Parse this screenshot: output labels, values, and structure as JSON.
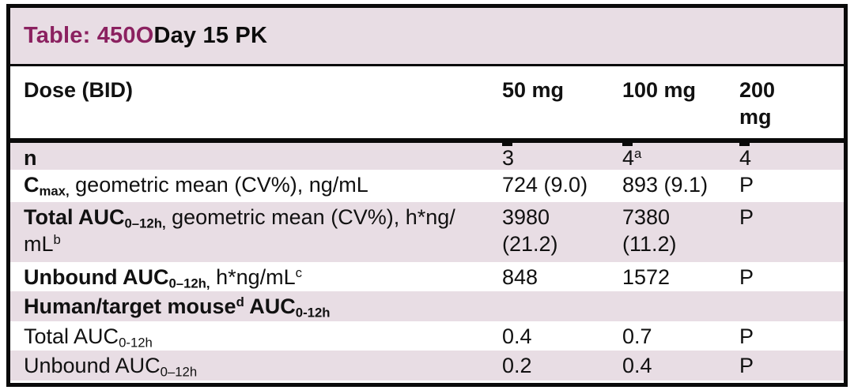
{
  "colors": {
    "accent": "#8b2160",
    "row_shade": "#e8dde4",
    "border": "#0a0a0a"
  },
  "title": {
    "prefix": "Table: 450O",
    "suffix": " Day 15 PK"
  },
  "header": {
    "label": "Dose (BID)",
    "columns": [
      "50 mg",
      "100 mg",
      "200 mg"
    ]
  },
  "rows": [
    {
      "shaded": true,
      "label": [
        {
          "t": "n",
          "b": true
        }
      ],
      "values": [
        [
          {
            "t": "3"
          }
        ],
        [
          {
            "t": "4"
          },
          {
            "t": "a",
            "sup": true
          }
        ],
        [
          {
            "t": "4"
          }
        ]
      ]
    },
    {
      "shaded": false,
      "label": [
        {
          "t": "C",
          "b": true
        },
        {
          "t": "max,",
          "b": true,
          "sub": true
        },
        {
          "t": " geometric mean (CV%), ng/mL"
        }
      ],
      "values": [
        [
          {
            "t": "724 (9.0)"
          }
        ],
        [
          {
            "t": "893 (9.1)"
          }
        ],
        [
          {
            "t": "P"
          }
        ]
      ]
    },
    {
      "shaded": true,
      "label": [
        {
          "t": "Total AUC",
          "b": true
        },
        {
          "t": "0–12h,",
          "b": true,
          "sub": true
        },
        {
          "t": " geometric mean (CV%), h*ng/"
        },
        {
          "br": true
        },
        {
          "t": "mL"
        },
        {
          "t": "b",
          "sup": true
        }
      ],
      "values": [
        [
          {
            "t": "3980"
          },
          {
            "br": true
          },
          {
            "t": "(21.2)"
          }
        ],
        [
          {
            "t": "7380"
          },
          {
            "br": true
          },
          {
            "t": "(11.2)"
          }
        ],
        [
          {
            "t": "P"
          }
        ]
      ]
    },
    {
      "shaded": false,
      "label": [
        {
          "t": "Unbound AUC",
          "b": true
        },
        {
          "t": "0–12h,",
          "b": true,
          "sub": true
        },
        {
          "t": " h*ng/mL"
        },
        {
          "t": "c",
          "sup": true
        }
      ],
      "values": [
        [
          {
            "t": "848"
          }
        ],
        [
          {
            "t": "1572"
          }
        ],
        [
          {
            "t": "P"
          }
        ]
      ]
    },
    {
      "shaded": true,
      "section": true,
      "label": [
        {
          "t": "Human/target mouse",
          "b": true
        },
        {
          "t": "d",
          "b": true,
          "sup": true
        },
        {
          "t": " AUC",
          "b": true
        },
        {
          "t": "0-12h",
          "b": true,
          "sub": true
        }
      ],
      "values": [
        [],
        [],
        []
      ]
    },
    {
      "shaded": false,
      "label": [
        {
          "t": "Total AUC"
        },
        {
          "t": "0-12h",
          "sub": true
        }
      ],
      "values": [
        [
          {
            "t": "0.4"
          }
        ],
        [
          {
            "t": "0.7"
          }
        ],
        [
          {
            "t": "P"
          }
        ]
      ]
    },
    {
      "shaded": true,
      "label": [
        {
          "t": "Unbound AUC"
        },
        {
          "t": "0–12h",
          "sub": true
        }
      ],
      "values": [
        [
          {
            "t": "0.2"
          }
        ],
        [
          {
            "t": "0.4"
          }
        ],
        [
          {
            "t": "P"
          }
        ]
      ]
    }
  ]
}
